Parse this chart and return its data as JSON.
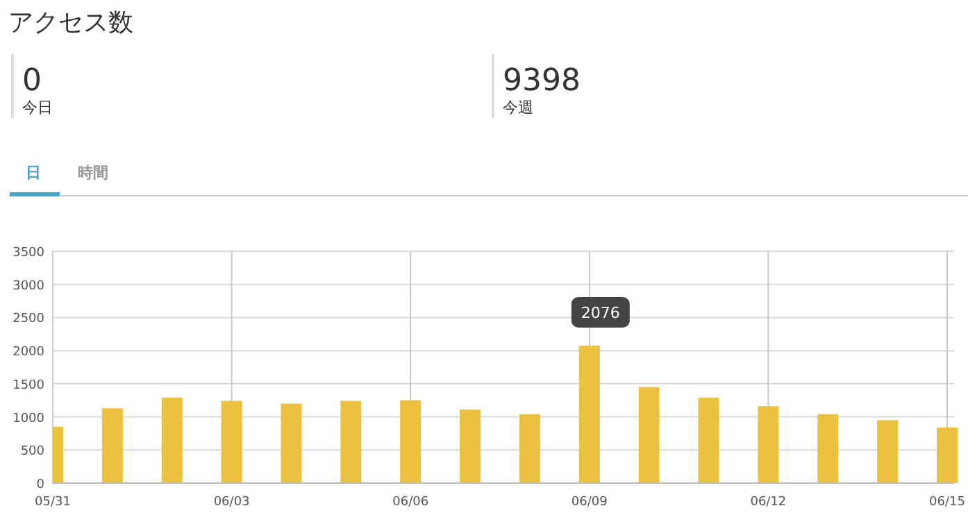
{
  "chart_data": [
    {
      "type": "other",
      "title": "アクセス数",
      "annotations": [
        "0",
        "今日",
        "9398",
        "今週",
        "日",
        "時間"
      ]
    },
    {
      "type": "bar",
      "x": [
        "--05-31",
        "--06-01",
        "--06-02",
        "--06-03",
        "--06-04",
        "--06-05",
        "--06-06",
        "--06-07",
        "--06-08",
        "--06-09",
        "--06-10",
        "--06-11",
        "--06-12",
        "--06-13",
        "--06-14",
        "--06-15"
      ],
      "values": [
        850,
        1130,
        1290,
        1240,
        1200,
        1240,
        1250,
        1110,
        1040,
        2076,
        1450,
        1290,
        1160,
        1040,
        950,
        840
      ],
      "color": "#ebc140",
      "xlim": [
        "--05-31",
        "--06-15"
      ],
      "xticks": [
        {
          "value": "--05-31",
          "label": "05/31"
        },
        {
          "value": "--06-03",
          "label": "06/03"
        },
        {
          "value": "--06-06",
          "label": "06/06"
        },
        {
          "value": "--06-09",
          "label": "06/09"
        },
        {
          "value": "--06-12",
          "label": "06/12"
        },
        {
          "value": "--06-15",
          "label": "06/15"
        }
      ],
      "ylim": [
        0,
        3500
      ],
      "yticks": [
        0,
        500,
        1000,
        1500,
        2000,
        2500,
        3000,
        3500
      ],
      "grid": true,
      "annotations": [
        {
          "text": "2076",
          "x": "--06-09",
          "y": 2076
        }
      ]
    }
  ]
}
